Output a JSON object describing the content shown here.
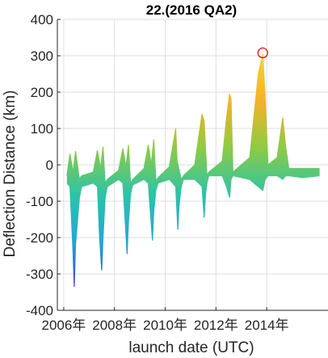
{
  "chart_data": {
    "type": "area",
    "title": "22.(2016 QA2)",
    "xlabel": "launch date (UTC)",
    "ylabel": "Deflection Distance (km)",
    "xlim": [
      "2005-10-01",
      "2016-06-01"
    ],
    "ylim": [
      -400,
      400
    ],
    "yticks": [
      -400,
      -300,
      -200,
      -100,
      0,
      100,
      200,
      300,
      400
    ],
    "xticks": [
      {
        "date": "2006-01-01",
        "label": "2006年"
      },
      {
        "date": "2008-01-01",
        "label": "2008年"
      },
      {
        "date": "2010-01-01",
        "label": "2010年"
      },
      {
        "date": "2012-01-01",
        "label": "2012年"
      },
      {
        "date": "2014-01-01",
        "label": "2014年"
      }
    ],
    "grid": true,
    "colormap": [
      "#3b3ed6",
      "#22a7d8",
      "#2bc4a8",
      "#8ccb45",
      "#f4b227",
      "#f5d234"
    ],
    "upper_envelope": [
      [
        "2006-02-15",
        -30
      ],
      [
        "2006-04-01",
        30
      ],
      [
        "2006-05-15",
        -20
      ],
      [
        "2006-06-20",
        38
      ],
      [
        "2006-08-15",
        -40
      ],
      [
        "2006-09-15",
        -30
      ],
      [
        "2007-03-01",
        -20
      ],
      [
        "2007-05-01",
        40
      ],
      [
        "2007-06-15",
        -10
      ],
      [
        "2007-07-20",
        50
      ],
      [
        "2007-08-20",
        -50
      ],
      [
        "2007-09-20",
        -40
      ],
      [
        "2008-03-01",
        -15
      ],
      [
        "2008-05-01",
        45
      ],
      [
        "2008-06-15",
        -5
      ],
      [
        "2008-07-20",
        55
      ],
      [
        "2008-08-20",
        -50
      ],
      [
        "2008-09-20",
        -40
      ],
      [
        "2009-03-01",
        -10
      ],
      [
        "2009-05-01",
        55
      ],
      [
        "2009-06-15",
        0
      ],
      [
        "2009-07-20",
        70
      ],
      [
        "2009-08-20",
        -45
      ],
      [
        "2009-09-20",
        -35
      ],
      [
        "2010-03-01",
        -5
      ],
      [
        "2010-06-01",
        100
      ],
      [
        "2010-06-20",
        10
      ],
      [
        "2010-08-20",
        -40
      ],
      [
        "2010-09-20",
        -30
      ],
      [
        "2011-03-01",
        0
      ],
      [
        "2011-06-15",
        140
      ],
      [
        "2011-07-15",
        120
      ],
      [
        "2011-08-25",
        -30
      ],
      [
        "2011-09-20",
        -20
      ],
      [
        "2012-04-01",
        10
      ],
      [
        "2012-06-01",
        130
      ],
      [
        "2012-07-15",
        195
      ],
      [
        "2012-08-05",
        180
      ],
      [
        "2012-09-01",
        -20
      ],
      [
        "2013-05-01",
        20
      ],
      [
        "2013-09-01",
        250
      ],
      [
        "2013-11-05",
        305
      ],
      [
        "2013-12-10",
        180
      ],
      [
        "2014-01-20",
        0
      ],
      [
        "2014-06-01",
        20
      ],
      [
        "2014-08-20",
        130
      ],
      [
        "2014-10-01",
        50
      ],
      [
        "2014-11-15",
        -10
      ],
      [
        "2015-06-01",
        -10
      ],
      [
        "2016-02-01",
        -10
      ]
    ],
    "lower_envelope": [
      [
        "2006-02-15",
        -50
      ],
      [
        "2006-04-01",
        -60
      ],
      [
        "2006-05-15",
        -240
      ],
      [
        "2006-06-01",
        -335
      ],
      [
        "2006-06-20",
        -220
      ],
      [
        "2006-08-15",
        -90
      ],
      [
        "2006-09-15",
        -60
      ],
      [
        "2007-03-01",
        -50
      ],
      [
        "2007-05-01",
        -60
      ],
      [
        "2007-06-01",
        -200
      ],
      [
        "2007-07-01",
        -290
      ],
      [
        "2007-07-20",
        -200
      ],
      [
        "2007-08-20",
        -90
      ],
      [
        "2007-09-20",
        -60
      ],
      [
        "2008-03-01",
        -40
      ],
      [
        "2008-05-01",
        -50
      ],
      [
        "2008-06-01",
        -150
      ],
      [
        "2008-07-01",
        -245
      ],
      [
        "2008-07-20",
        -160
      ],
      [
        "2008-08-20",
        -80
      ],
      [
        "2008-09-20",
        -55
      ],
      [
        "2009-03-01",
        -40
      ],
      [
        "2009-05-01",
        -50
      ],
      [
        "2009-06-01",
        -130
      ],
      [
        "2009-07-01",
        -208
      ],
      [
        "2009-07-20",
        -130
      ],
      [
        "2009-08-20",
        -70
      ],
      [
        "2009-09-20",
        -50
      ],
      [
        "2010-03-01",
        -40
      ],
      [
        "2010-06-01",
        -60
      ],
      [
        "2010-07-01",
        -178
      ],
      [
        "2010-07-20",
        -110
      ],
      [
        "2010-08-20",
        -60
      ],
      [
        "2010-09-20",
        -40
      ],
      [
        "2011-03-01",
        -40
      ],
      [
        "2011-06-15",
        -60
      ],
      [
        "2011-07-15",
        -145
      ],
      [
        "2011-08-05",
        -80
      ],
      [
        "2011-08-25",
        -50
      ],
      [
        "2011-09-20",
        -30
      ],
      [
        "2012-04-01",
        -30
      ],
      [
        "2012-06-01",
        -60
      ],
      [
        "2012-07-15",
        -90
      ],
      [
        "2012-08-05",
        -40
      ],
      [
        "2012-09-01",
        -30
      ],
      [
        "2013-05-01",
        -40
      ],
      [
        "2013-09-01",
        -60
      ],
      [
        "2013-11-05",
        -70
      ],
      [
        "2013-12-10",
        -40
      ],
      [
        "2014-01-20",
        -30
      ],
      [
        "2014-06-01",
        -30
      ],
      [
        "2014-08-20",
        -40
      ],
      [
        "2014-10-01",
        -30
      ],
      [
        "2014-11-15",
        -30
      ],
      [
        "2015-06-01",
        -35
      ],
      [
        "2016-02-01",
        -30
      ]
    ],
    "annotations": [
      {
        "type": "marker-circle",
        "x": "2013-11-05",
        "y": 308,
        "color": "#e01010"
      }
    ]
  }
}
